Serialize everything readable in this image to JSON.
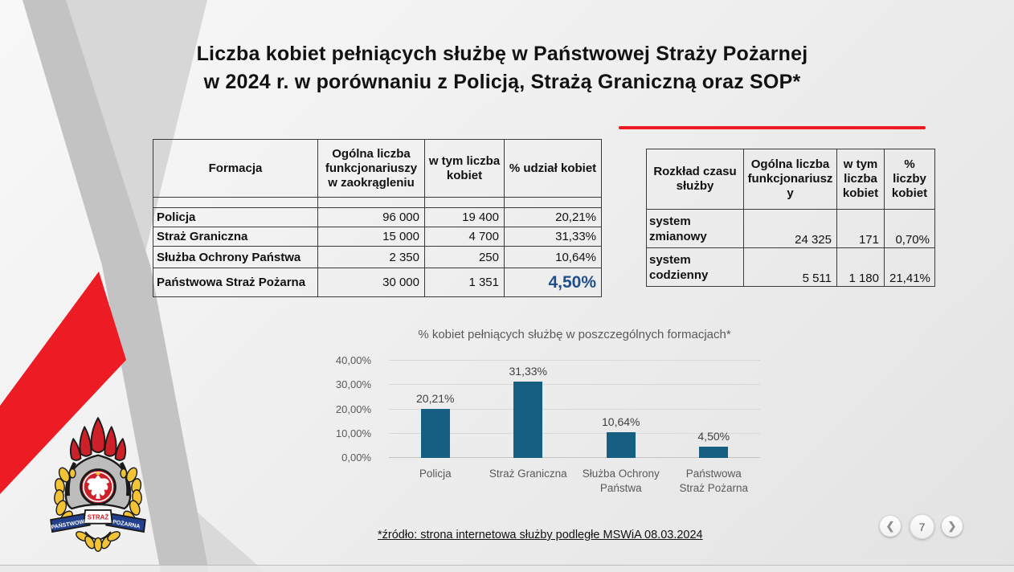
{
  "slide": {
    "title_line1": "Liczba kobiet pełniących służbę w Państwowej Straży Pożarnej",
    "title_line2": "w 2024 r. w porównaniu z Policją, Strażą Graniczną oraz SOP*",
    "source_note": "*źródło: strona internetowa służby podległe MSWiA 08.03.2024",
    "page_number": "7"
  },
  "left_table": {
    "headers": [
      "Formacja",
      "Ogólna liczba funkcjonariuszy w zaokrągleniu",
      "w tym liczba kobiet",
      "% udział kobiet"
    ],
    "rows": [
      [
        "Policja",
        "96 000",
        "19 400",
        "20,21%"
      ],
      [
        "Straż Graniczna",
        "15 000",
        "4 700",
        "31,33%"
      ],
      [
        "Służba Ochrony Państwa",
        "2 350",
        "250",
        "10,64%"
      ],
      [
        "Państwowa Straż Pożarna",
        "30 000",
        "1 351",
        "4,50%"
      ]
    ],
    "emphasis": {
      "row": 3,
      "col": 3,
      "color": "#1F4E8C"
    }
  },
  "right_table": {
    "headers": [
      "Rozkład czasu służby",
      "Ogólna liczba funkcjonariuszy",
      "w tym liczba kobiet",
      "% liczby kobiet"
    ],
    "rows": [
      [
        "system zmianowy",
        "24 325",
        "171",
        "0,70%"
      ],
      [
        "system codzienny",
        "5 511",
        "1 180",
        "21,41%"
      ]
    ]
  },
  "chart_data": {
    "type": "bar",
    "title": "% kobiet pełniących służbę w poszczególnych formacjach*",
    "categories": [
      "Policja",
      "Straż Graniczna",
      "Służba Ochrony Państwa",
      "Państwowa Straż Pożarna"
    ],
    "values": [
      20.21,
      31.33,
      10.64,
      4.5
    ],
    "value_labels": [
      "20,21%",
      "31,33%",
      "10,64%",
      "4,50%"
    ],
    "xlabel": "",
    "ylabel": "",
    "ylim": [
      0,
      40
    ],
    "ytick_labels": [
      "0,00%",
      "10,00%",
      "20,00%",
      "30,00%",
      "40,00%"
    ],
    "grid": true,
    "legend": "none",
    "bar_color": "#175F82"
  },
  "nav": {
    "prev_icon": "❮",
    "next_icon": "❯"
  },
  "logo": {
    "banner_left": "PAŃSTWOWA",
    "banner_center": "STRAŻ",
    "banner_right": "POŻARNA"
  },
  "colors": {
    "accent_red": "#ED1C24",
    "bar_blue": "#175F82",
    "emphasis_blue": "#1F4E8C",
    "band_gray_dark": "#c3c3c3",
    "band_gray_light": "#d7d7d7"
  }
}
